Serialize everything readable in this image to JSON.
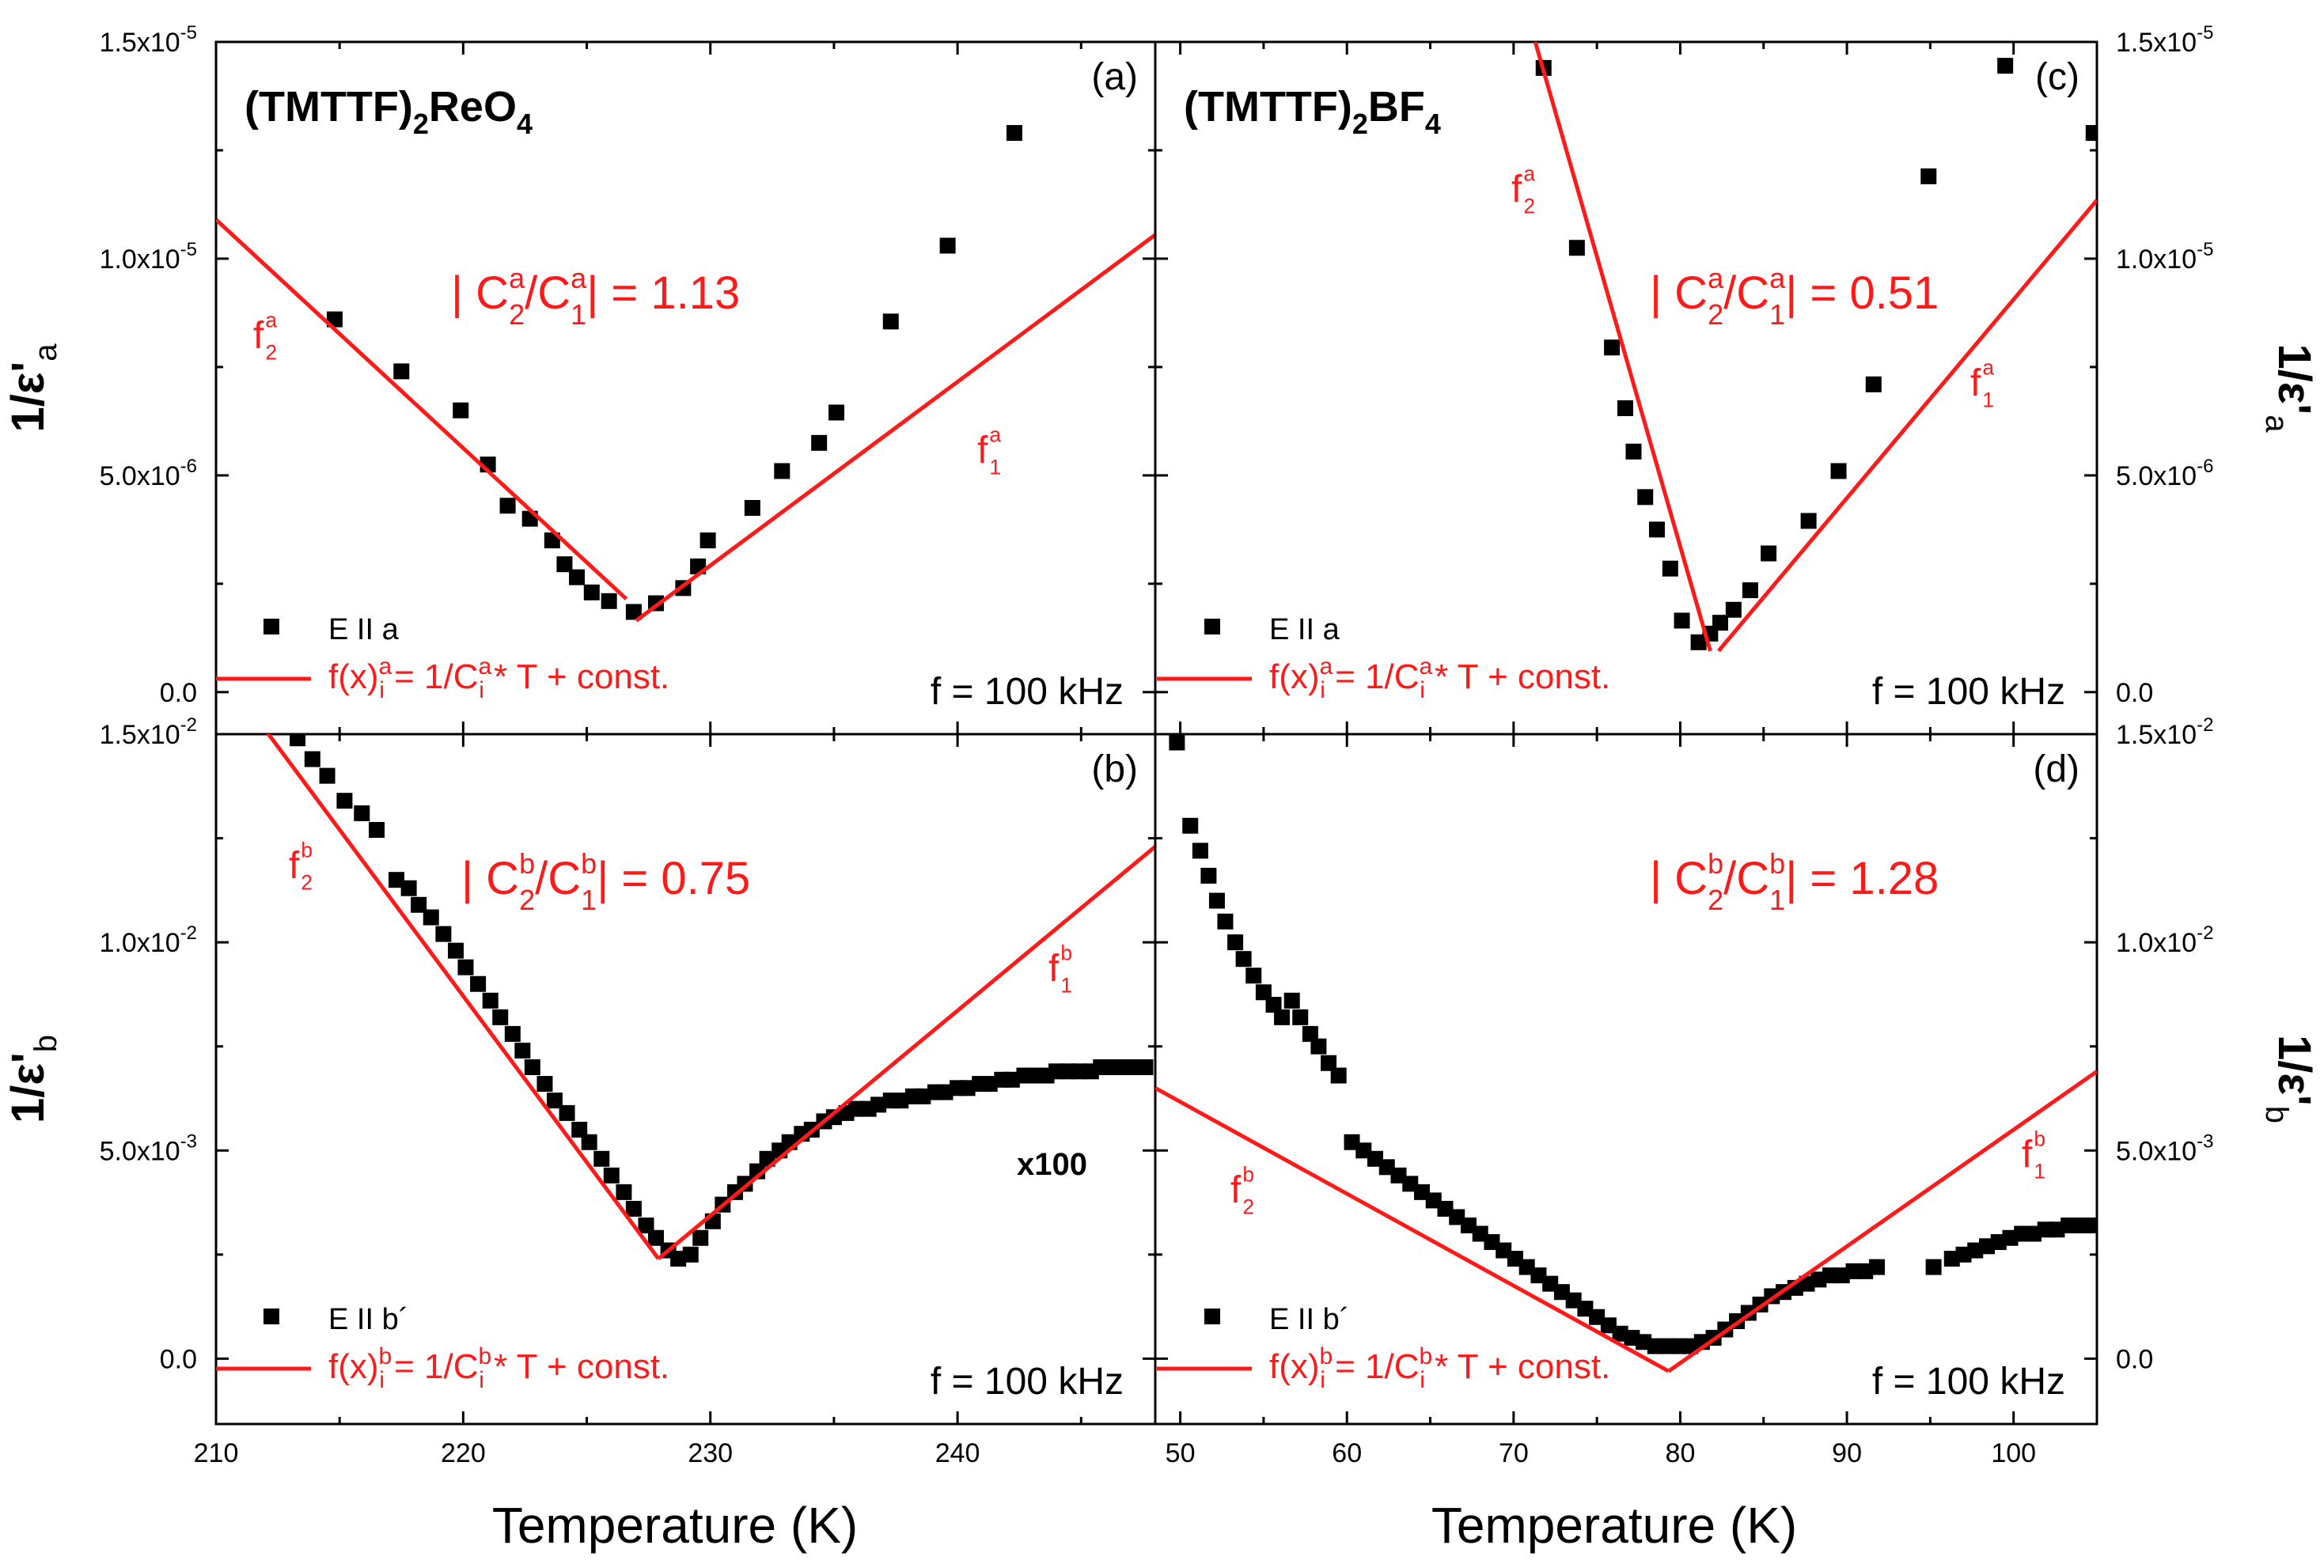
{
  "figure": {
    "x_title": "Temperature (K)",
    "frequency_note": "f = 100 kHz"
  },
  "chart_data": [
    {
      "panel": "a",
      "type": "scatter",
      "compound": "(TMTTF)",
      "compound_sub": "2",
      "compound_rest": "ReO",
      "compound_rest_sub": "4",
      "panel_label": "(a)",
      "ylabel_main": "1/ε'",
      "ylabel_sub": "a",
      "xlim": [
        210,
        248
      ],
      "ylim": [
        -9.7e-07,
        1.5e-05
      ],
      "xticks": [
        210,
        220,
        230,
        240
      ],
      "xtick_labels": [
        "210",
        "220",
        "230",
        "240"
      ],
      "yticks": [
        0.0,
        5e-06,
        1e-05,
        1.5e-05
      ],
      "ytick_labels": [
        [
          "0.0",
          ""
        ],
        [
          "5.0x10",
          "-6"
        ],
        [
          "1.0x10",
          "-5"
        ],
        [
          "1.5x10",
          "-5"
        ]
      ],
      "ratio_prefix": "| C",
      "ratio_sub1": "2",
      "ratio_sup1": "a",
      "ratio_mid": "/C",
      "ratio_sub2": "1",
      "ratio_sup2": "a",
      "ratio_value": "| = 1.13",
      "fit_label_left": {
        "sym": "f",
        "sup": "a",
        "sub": "2"
      },
      "fit_label_right": {
        "sym": "f",
        "sup": "a",
        "sub": "1"
      },
      "legend_points": "E II a",
      "legend_fit": {
        "p1": "f(x)",
        "sup1": "a",
        "sub1": "i",
        "p2": " = 1/C",
        "sup2": "a",
        "sub2": "i",
        "p3": " * T + const."
      },
      "series": [
        {
          "name": "E II a",
          "x": [
            214.8,
            217.5,
            219.9,
            221.0,
            221.8,
            222.7,
            223.6,
            224.1,
            224.6,
            225.2,
            225.9,
            226.9,
            227.8,
            228.9,
            229.5,
            229.9,
            231.7,
            232.9,
            234.4,
            235.1,
            237.3,
            239.6,
            242.3
          ],
          "y": [
            8.6e-06,
            7.4e-06,
            6.5e-06,
            5.25e-06,
            4.3e-06,
            4e-06,
            3.5e-06,
            2.95e-06,
            2.65e-06,
            2.3e-06,
            2.1e-06,
            1.85e-06,
            2.05e-06,
            2.4e-06,
            2.9e-06,
            3.5e-06,
            4.25e-06,
            5.1e-06,
            5.75e-06,
            6.45e-06,
            8.55e-06,
            1.03e-05,
            1.29e-05
          ]
        },
        {
          "name": "fit f2",
          "type": "line",
          "x": [
            210.0,
            226.6
          ],
          "y": [
            1.09e-05,
            2.15e-06
          ]
        },
        {
          "name": "fit f1",
          "type": "line",
          "x": [
            227.0,
            248.0
          ],
          "y": [
            1.65e-06,
            1.055e-05
          ]
        }
      ]
    },
    {
      "panel": "b",
      "type": "scatter",
      "panel_label": "(b)",
      "ylabel_main": "1/ε'",
      "ylabel_sub": "b",
      "xlim": [
        210,
        248
      ],
      "ylim": [
        -0.00157,
        0.015
      ],
      "xticks": [
        210,
        220,
        230,
        240
      ],
      "xtick_labels": [
        "210",
        "220",
        "230",
        "240"
      ],
      "yticks": [
        0.0,
        0.005,
        0.01,
        0.015
      ],
      "ytick_labels": [
        [
          "0.0",
          ""
        ],
        [
          "5.0x10",
          "-3"
        ],
        [
          "1.0x10",
          "-2"
        ],
        [
          "1.5x10",
          "-2"
        ]
      ],
      "ratio_prefix": "| C",
      "ratio_sub1": "2",
      "ratio_sup1": "b",
      "ratio_mid": "/C",
      "ratio_sub2": "1",
      "ratio_sup2": "b",
      "ratio_value": "| = 0.75",
      "fit_label_left": {
        "sym": "f",
        "sup": "b",
        "sub": "2"
      },
      "fit_label_right": {
        "sym": "f",
        "sup": "b",
        "sub": "1"
      },
      "multiplier": "x100",
      "legend_points": "E II b´",
      "legend_fit": {
        "p1": "f(x)",
        "sup1": "b",
        "sub1": "i",
        "p2": " = 1/C",
        "sup2": "b",
        "sub2": "i",
        "p3": " * T + const."
      },
      "series": [
        {
          "name": "E II b´",
          "x": [
            213.3,
            213.9,
            214.5,
            215.2,
            215.9,
            216.5,
            217.3,
            217.8,
            218.2,
            218.7,
            219.2,
            219.7,
            220.1,
            220.6,
            221.1,
            221.5,
            222.0,
            222.4,
            222.8,
            223.3,
            223.7,
            224.2,
            224.7,
            225.1,
            225.6,
            226.0,
            226.5,
            226.9,
            227.4,
            227.8,
            228.3,
            228.7,
            229.2,
            229.6,
            230.1,
            230.5,
            231.0,
            231.4,
            231.9,
            232.3,
            232.8,
            233.2,
            233.7,
            234.1,
            234.6,
            235.0,
            235.5,
            235.9,
            236.4,
            236.8,
            237.3,
            237.7,
            238.2,
            238.6,
            239.1,
            239.5,
            240.0,
            240.4,
            240.9,
            241.3,
            241.8,
            242.2,
            242.7,
            243.1,
            243.6,
            244.0,
            244.5,
            244.9,
            245.4,
            245.8,
            246.3,
            246.7,
            247.2,
            247.6
          ],
          "y": [
            0.0149,
            0.0144,
            0.014,
            0.0134,
            0.0131,
            0.0127,
            0.0115,
            0.0113,
            0.0109,
            0.0106,
            0.0102,
            0.0098,
            0.0094,
            0.009,
            0.0086,
            0.0082,
            0.0078,
            0.0074,
            0.007,
            0.0066,
            0.0062,
            0.0059,
            0.0055,
            0.0052,
            0.0048,
            0.0044,
            0.004,
            0.0036,
            0.0032,
            0.0029,
            0.0026,
            0.0024,
            0.0025,
            0.0029,
            0.0033,
            0.0037,
            0.004,
            0.0042,
            0.0045,
            0.0048,
            0.005,
            0.0052,
            0.0054,
            0.0055,
            0.0057,
            0.0058,
            0.0059,
            0.006,
            0.006,
            0.0061,
            0.0062,
            0.0062,
            0.0063,
            0.0063,
            0.0064,
            0.0064,
            0.0065,
            0.0065,
            0.0066,
            0.0066,
            0.0067,
            0.0067,
            0.0068,
            0.0068,
            0.0068,
            0.0069,
            0.0069,
            0.0069,
            0.0069,
            0.007,
            0.007,
            0.007,
            0.007,
            0.007
          ]
        },
        {
          "name": "fit f2",
          "type": "line",
          "x": [
            212.0,
            227.9
          ],
          "y": [
            0.0151,
            0.0024
          ]
        },
        {
          "name": "fit f1",
          "type": "line",
          "x": [
            227.9,
            248.0
          ],
          "y": [
            0.0024,
            0.0123
          ]
        }
      ]
    },
    {
      "panel": "c",
      "type": "scatter",
      "compound": "(TMTTF)",
      "compound_sub": "2",
      "compound_rest": "BF",
      "compound_rest_sub": "4",
      "panel_label": "(c)",
      "ylabel_main": "1/ε'",
      "ylabel_sub": "a",
      "xlim": [
        48.5,
        105
      ],
      "ylim": [
        -9.7e-07,
        1.5e-05
      ],
      "xticks": [
        50,
        60,
        70,
        80,
        90,
        100
      ],
      "xtick_labels": [
        "50",
        "60",
        "70",
        "80",
        "90",
        "100"
      ],
      "yticks": [
        0.0,
        5e-06,
        1e-05,
        1.5e-05
      ],
      "ytick_labels": [
        [
          "0.0",
          ""
        ],
        [
          "5.0x10",
          "-6"
        ],
        [
          "1.0x10",
          "-5"
        ],
        [
          "1.5x10",
          "-5"
        ]
      ],
      "ratio_prefix": "| C",
      "ratio_sub1": "2",
      "ratio_sup1": "a",
      "ratio_mid": "/C",
      "ratio_sub2": "1",
      "ratio_sup2": "a",
      "ratio_value": "| = 0.51",
      "fit_label_left": {
        "sym": "f",
        "sup": "a",
        "sub": "2"
      },
      "fit_label_right": {
        "sym": "f",
        "sup": "a",
        "sub": "1"
      },
      "legend_points": "E II a",
      "legend_fit": {
        "p1": "f(x)",
        "sup1": "a",
        "sub1": "i",
        "p2": " = 1/C",
        "sup2": "a",
        "sub2": "i",
        "p3": " * T + const."
      },
      "series": [
        {
          "name": "E II a",
          "x": [
            71.8,
            73.8,
            75.9,
            76.7,
            77.2,
            77.9,
            78.6,
            79.4,
            80.1,
            81.1,
            81.8,
            82.4,
            83.2,
            84.2,
            85.3,
            87.7,
            89.5,
            91.6,
            94.9,
            99.5,
            104.8
          ],
          "y": [
            1.44e-05,
            1.025e-05,
            7.95e-06,
            6.55e-06,
            5.55e-06,
            4.5e-06,
            3.75e-06,
            2.85e-06,
            1.65e-06,
            1.15e-06,
            1.35e-06,
            1.6e-06,
            1.9e-06,
            2.35e-06,
            3.2e-06,
            3.95e-06,
            5.1e-06,
            7.1e-06,
            1.19e-05,
            1.445e-05,
            1.29e-05
          ]
        },
        {
          "name": "fit f2",
          "type": "line",
          "x": [
            71.3,
            81.8
          ],
          "y": [
            1.5e-05,
            9.5e-07
          ]
        },
        {
          "name": "fit f1",
          "type": "line",
          "x": [
            82.3,
            105.0
          ],
          "y": [
            9.5e-07,
            1.135e-05
          ]
        }
      ]
    },
    {
      "panel": "d",
      "type": "scatter",
      "panel_label": "(d)",
      "ylabel_main": "1/ε'",
      "ylabel_sub": "b",
      "xlim": [
        48.5,
        105
      ],
      "ylim": [
        -0.00157,
        0.015
      ],
      "xticks": [
        50,
        60,
        70,
        80,
        90,
        100
      ],
      "xtick_labels": [
        "50",
        "60",
        "70",
        "80",
        "90",
        "100"
      ],
      "yticks": [
        0.0,
        0.005,
        0.01,
        0.015
      ],
      "ytick_labels": [
        [
          "0.0",
          ""
        ],
        [
          "5.0x10",
          "-3"
        ],
        [
          "1.0x10",
          "-2"
        ],
        [
          "1.5x10",
          "-2"
        ]
      ],
      "ratio_prefix": "| C",
      "ratio_sub1": "2",
      "ratio_sup1": "b",
      "ratio_mid": "/C",
      "ratio_sub2": "1",
      "ratio_sup2": "b",
      "ratio_value": "| = 1.28",
      "fit_label_left": {
        "sym": "f",
        "sup": "b",
        "sub": "2"
      },
      "fit_label_right": {
        "sym": "f",
        "sup": "b",
        "sub": "1"
      },
      "legend_points": "E II b´",
      "legend_fit": {
        "p1": "f(x)",
        "sup1": "b",
        "sub1": "i",
        "p2": " = 1/C",
        "sup2": "b",
        "sub2": "i",
        "p3": " * T + const."
      },
      "series": [
        {
          "name": "E II b´",
          "x": [
            49.8,
            50.6,
            51.2,
            51.7,
            52.2,
            52.7,
            53.3,
            53.8,
            54.4,
            55.0,
            55.6,
            56.1,
            56.7,
            57.2,
            57.8,
            58.3,
            58.9,
            59.5,
            60.3,
            61.0,
            61.7,
            62.4,
            63.1,
            63.8,
            64.5,
            65.2,
            65.9,
            66.6,
            67.3,
            68.0,
            68.7,
            69.4,
            70.1,
            70.8,
            71.5,
            72.2,
            72.9,
            73.6,
            74.3,
            75.0,
            75.7,
            76.4,
            77.1,
            77.8,
            78.5,
            79.2,
            79.9,
            80.6,
            81.3,
            82.0,
            82.7,
            83.4,
            84.1,
            84.8,
            85.5,
            86.2,
            86.9,
            87.6,
            88.3,
            89.0,
            89.7,
            90.4,
            91.1,
            91.8,
            95.2,
            96.3,
            97.0,
            97.7,
            98.4,
            99.1,
            99.8,
            100.5,
            101.2,
            101.9,
            102.6,
            103.3,
            104.0,
            104.7
          ],
          "y": [
            0.0148,
            0.0128,
            0.0122,
            0.0116,
            0.011,
            0.0105,
            0.01,
            0.0096,
            0.0092,
            0.0088,
            0.0085,
            0.0082,
            0.0086,
            0.0082,
            0.0078,
            0.0075,
            0.0071,
            0.0068,
            0.0052,
            0.005,
            0.0048,
            0.0046,
            0.0044,
            0.0042,
            0.004,
            0.0038,
            0.0036,
            0.0034,
            0.0032,
            0.003,
            0.0028,
            0.0026,
            0.0024,
            0.0022,
            0.002,
            0.0018,
            0.0016,
            0.0014,
            0.0012,
            0.001,
            0.0008,
            0.0006,
            0.0005,
            0.0004,
            0.0003,
            0.0003,
            0.0003,
            0.0003,
            0.0004,
            0.0005,
            0.0007,
            0.0009,
            0.0011,
            0.0013,
            0.0015,
            0.0016,
            0.0017,
            0.0018,
            0.0019,
            0.002,
            0.002,
            0.0021,
            0.0021,
            0.0022,
            0.0022,
            0.0024,
            0.0025,
            0.0026,
            0.0027,
            0.0028,
            0.0029,
            0.003,
            0.003,
            0.0031,
            0.0031,
            0.0032,
            0.0032,
            0.0032
          ]
        },
        {
          "name": "fit f2",
          "type": "line",
          "x": [
            48.5,
            79.3
          ],
          "y": [
            0.0065,
            -0.0003
          ]
        },
        {
          "name": "fit f1",
          "type": "line",
          "x": [
            79.3,
            105.0
          ],
          "y": [
            -0.0003,
            0.0069
          ]
        }
      ]
    }
  ]
}
